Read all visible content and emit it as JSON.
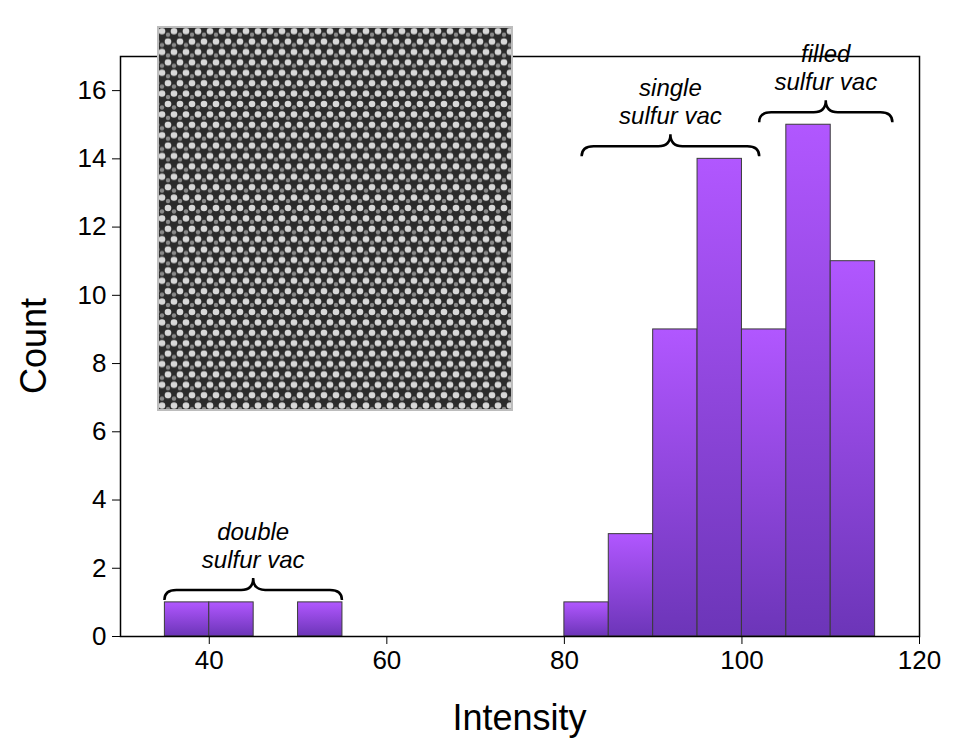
{
  "chart_data": {
    "type": "histogram",
    "bins": [
      35,
      40,
      45,
      50,
      55,
      60,
      65,
      70,
      75,
      80,
      85,
      90,
      95,
      100,
      105,
      110,
      115
    ],
    "counts": [
      1,
      1,
      0,
      1,
      0,
      0,
      0,
      0,
      0,
      1,
      3,
      9,
      14,
      9,
      15,
      11
    ],
    "x_label": "Intensity",
    "y_label": "Count",
    "xlim": [
      30,
      120
    ],
    "xticks": [
      40,
      60,
      80,
      100,
      120
    ],
    "ylim": [
      0,
      17
    ],
    "yticks": [
      0,
      2,
      4,
      6,
      8,
      10,
      12,
      14,
      16
    ],
    "grid": false,
    "color": "#8a44ec",
    "annotations": [
      {
        "text": "double sulfur vac",
        "range": [
          35,
          55
        ]
      },
      {
        "text": "single sulfur vac",
        "range": [
          82,
          102
        ]
      },
      {
        "text": "filled sulfur vac",
        "range": [
          102,
          117
        ]
      }
    ]
  }
}
